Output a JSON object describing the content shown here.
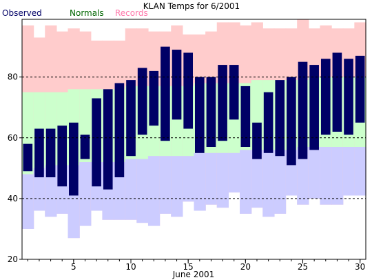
{
  "chart_data": {
    "type": "bar",
    "title": "KLAN Temps for 6/2001",
    "xlabel": "June 2001",
    "ylabel": "",
    "ylim": [
      20,
      99
    ],
    "xlim": [
      0.5,
      30.5
    ],
    "legend_position": "top-left",
    "grid": {
      "horizontal_dashed_at": [
        40,
        60,
        80
      ]
    },
    "legend": [
      {
        "name": "Observed",
        "color": "#000066"
      },
      {
        "name": "Normals",
        "color": "#006600"
      },
      {
        "name": "Records",
        "color": "#ff77aa"
      }
    ],
    "x_ticks": [
      5,
      10,
      15,
      20,
      25,
      30
    ],
    "y_ticks": [
      20,
      40,
      60,
      80
    ],
    "days": [
      1,
      2,
      3,
      4,
      5,
      6,
      7,
      8,
      9,
      10,
      11,
      12,
      13,
      14,
      15,
      16,
      17,
      18,
      19,
      20,
      21,
      22,
      23,
      24,
      25,
      26,
      27,
      28,
      29,
      30
    ],
    "series": [
      {
        "name": "Records",
        "color": "#ffcccc",
        "high": [
          97,
          93,
          97,
          95,
          96,
          95,
          92,
          92,
          92,
          96,
          96,
          95,
          95,
          97,
          94,
          94,
          95,
          98,
          98,
          97,
          98,
          96,
          96,
          96,
          99,
          96,
          97,
          96,
          96,
          98
        ],
        "low": [
          30,
          36,
          34,
          35,
          27,
          31,
          36,
          33,
          33,
          33,
          32,
          31,
          35,
          34,
          39,
          36,
          38,
          37,
          42,
          35,
          37,
          34,
          35,
          41,
          38,
          40,
          38,
          38,
          41,
          41
        ]
      },
      {
        "name": "Normals",
        "color": "#ccffcc",
        "high": [
          75,
          75,
          75,
          75,
          76,
          76,
          76,
          76,
          76,
          77,
          77,
          77,
          77,
          77,
          77,
          78,
          78,
          78,
          78,
          78,
          79,
          79,
          79,
          79,
          79,
          80,
          80,
          80,
          80,
          80
        ],
        "low": [
          48,
          50,
          51,
          51,
          51,
          52,
          52,
          52,
          52,
          53,
          53,
          54,
          54,
          54,
          54,
          55,
          55,
          55,
          55,
          56,
          56,
          56,
          56,
          56,
          57,
          57,
          57,
          57,
          57,
          57
        ],
        "lower_fill_color": "#ccccff"
      },
      {
        "name": "Observed",
        "color": "#000066",
        "high": [
          58,
          63,
          63,
          64,
          65,
          61,
          73,
          76,
          78,
          79,
          83,
          82,
          90,
          89,
          88,
          80,
          80,
          84,
          84,
          77,
          65,
          75,
          79,
          80,
          85,
          84,
          86,
          88,
          86,
          87
        ],
        "low": [
          49,
          47,
          47,
          44,
          41,
          53,
          44,
          43,
          47,
          54,
          61,
          64,
          59,
          66,
          63,
          55,
          57,
          59,
          66,
          57,
          53,
          55,
          54,
          51,
          53,
          56,
          61,
          62,
          61,
          65
        ]
      }
    ]
  },
  "colors": {
    "background": "#ffffff",
    "gridline": "#000000",
    "axis": "#000000"
  }
}
